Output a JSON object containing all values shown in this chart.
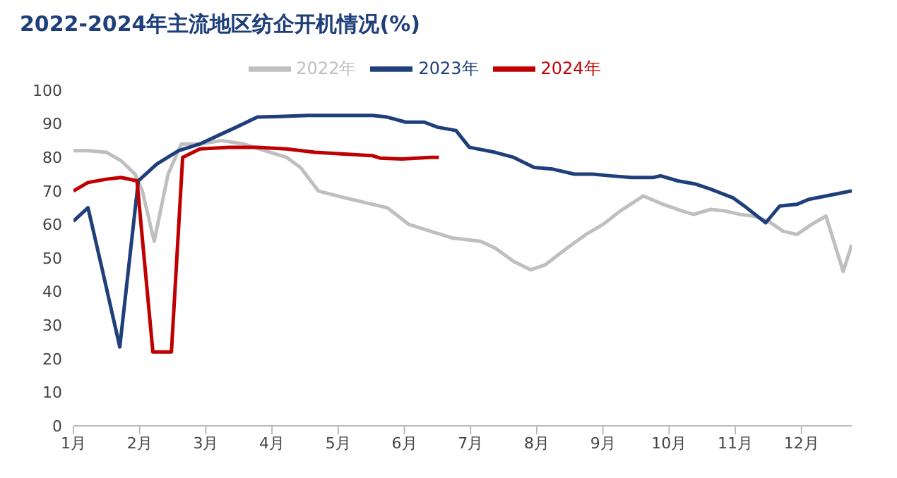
{
  "chart_data": {
    "type": "line",
    "title": "2022-2024年主流地区纺企开机情况(%)",
    "xlim": [
      1,
      12.76
    ],
    "xticks": [
      {
        "value": 1,
        "label": "1月"
      },
      {
        "value": 2,
        "label": "2月"
      },
      {
        "value": 3,
        "label": "3月"
      },
      {
        "value": 4,
        "label": "4月"
      },
      {
        "value": 5,
        "label": "5月"
      },
      {
        "value": 6,
        "label": "6月"
      },
      {
        "value": 7,
        "label": "7月"
      },
      {
        "value": 8,
        "label": "8月"
      },
      {
        "value": 9,
        "label": "9月"
      },
      {
        "value": 10,
        "label": "10月"
      },
      {
        "value": 11,
        "label": "11月"
      },
      {
        "value": 12,
        "label": "12月"
      }
    ],
    "ylim": [
      0,
      100
    ],
    "yticks": [
      0,
      10,
      20,
      30,
      40,
      50,
      60,
      70,
      80,
      90,
      100
    ],
    "grid": false,
    "legend": "top",
    "marker": "none",
    "line_style": "solid",
    "series": [
      {
        "name": "2022年",
        "color": "#bfbfbf",
        "x": [
          1,
          1.22,
          1.5,
          1.72,
          1.93,
          2.04,
          2.22,
          2.43,
          2.63,
          2.91,
          3.24,
          3.57,
          3.89,
          4.22,
          4.43,
          4.7,
          5.09,
          5.52,
          5.74,
          6.07,
          6.39,
          6.72,
          7.15,
          7.37,
          7.65,
          7.91,
          8.13,
          8.46,
          8.74,
          9,
          9.26,
          9.61,
          9.91,
          10.2,
          10.37,
          10.63,
          10.85,
          11.07,
          11.28,
          11.5,
          11.72,
          11.93,
          12.15,
          12.37,
          12.63,
          12.76
        ],
        "values": [
          82,
          82,
          81.5,
          79,
          75,
          70,
          55,
          75,
          84,
          84,
          85,
          84,
          82,
          80,
          77,
          70,
          68,
          66,
          65,
          60,
          58,
          56,
          55,
          53,
          49,
          46.5,
          48,
          53,
          57,
          60,
          64,
          68.5,
          66,
          64,
          63,
          64.5,
          64,
          63,
          62.5,
          61,
          58,
          57,
          60,
          62.5,
          46,
          54
        ]
      },
      {
        "name": "2023年",
        "color": "#1f3f7a",
        "x": [
          1,
          1.22,
          1.43,
          1.7,
          1.98,
          2.26,
          2.59,
          2.91,
          3.24,
          3.46,
          3.78,
          4.11,
          4.54,
          4.87,
          5.52,
          5.74,
          6.02,
          6.3,
          6.5,
          6.78,
          6.98,
          7.37,
          7.65,
          7.96,
          8.24,
          8.57,
          8.85,
          9.11,
          9.43,
          9.76,
          9.87,
          10.13,
          10.41,
          10.63,
          10.96,
          11.17,
          11.46,
          11.67,
          11.93,
          12.11,
          12.37,
          12.76
        ],
        "values": [
          61,
          65,
          47,
          23.5,
          73,
          78,
          82,
          84,
          87,
          89,
          92,
          92.2,
          92.5,
          92.5,
          92.5,
          92,
          90.5,
          90.5,
          89,
          88,
          83,
          81.5,
          80,
          77,
          76.5,
          75,
          75,
          74.5,
          74,
          74,
          74.5,
          73,
          72,
          70.5,
          68,
          65,
          60.5,
          65.5,
          66,
          67.5,
          68.5,
          70
        ]
      },
      {
        "name": "2024年",
        "color": "#c00000",
        "x": [
          1,
          1.22,
          1.5,
          1.72,
          1.96,
          2.2,
          2.48,
          2.65,
          2.91,
          3.35,
          3.78,
          4.22,
          4.65,
          5.09,
          5.52,
          5.63,
          5.96,
          6.39,
          6.52
        ],
        "values": [
          70,
          72.5,
          73.5,
          74,
          73,
          22,
          22,
          80,
          82.5,
          83,
          83,
          82.5,
          81.5,
          81,
          80.5,
          79.8,
          79.5,
          80,
          80
        ]
      }
    ]
  }
}
